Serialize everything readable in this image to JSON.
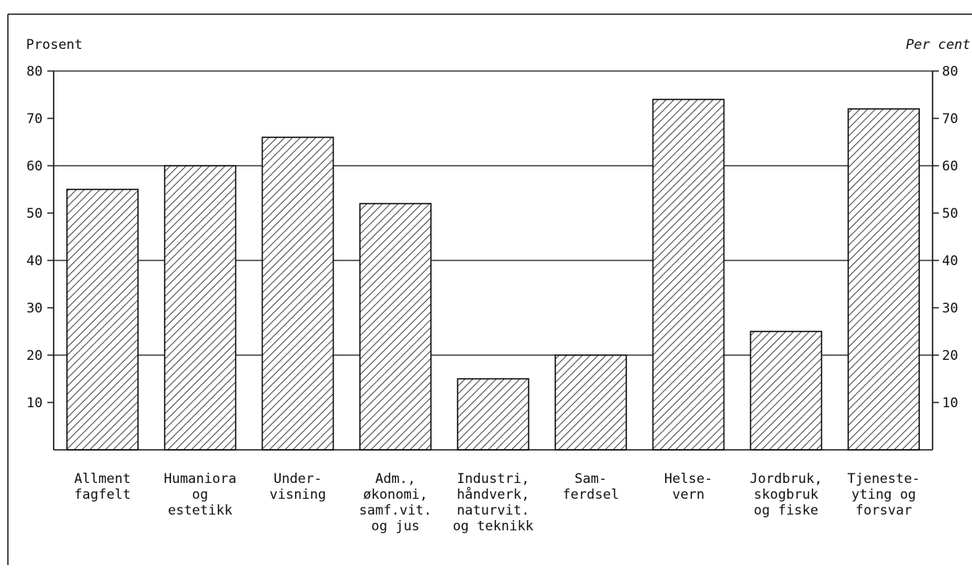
{
  "chart_data": {
    "type": "bar",
    "ylabel_left": "Prosent",
    "ylabel_right": "Per cent",
    "ylim": [
      0,
      80
    ],
    "yticks": [
      10,
      20,
      30,
      40,
      50,
      60,
      70,
      80
    ],
    "grid": true,
    "bar_fill": "diagonal hatch",
    "categories": [
      [
        "Allment",
        "fagfelt"
      ],
      [
        "Humaniora",
        "og",
        "estetikk"
      ],
      [
        "Under-",
        "visning"
      ],
      [
        "Adm.,",
        "økonomi,",
        "samf.vit.",
        "og jus"
      ],
      [
        "Industri,",
        "håndverk,",
        "naturvit.",
        "og teknikk"
      ],
      [
        "Sam-",
        "ferdsel"
      ],
      [
        "Helse-",
        "vern"
      ],
      [
        "Jordbruk,",
        "skogbruk",
        "og fiske"
      ],
      [
        "Tjeneste-",
        "yting og",
        "forsvar"
      ]
    ],
    "values": [
      55,
      60,
      66,
      52,
      15,
      20,
      74,
      25,
      72
    ]
  },
  "colors": {
    "ink": "#111111",
    "background": "#ffffff"
  }
}
